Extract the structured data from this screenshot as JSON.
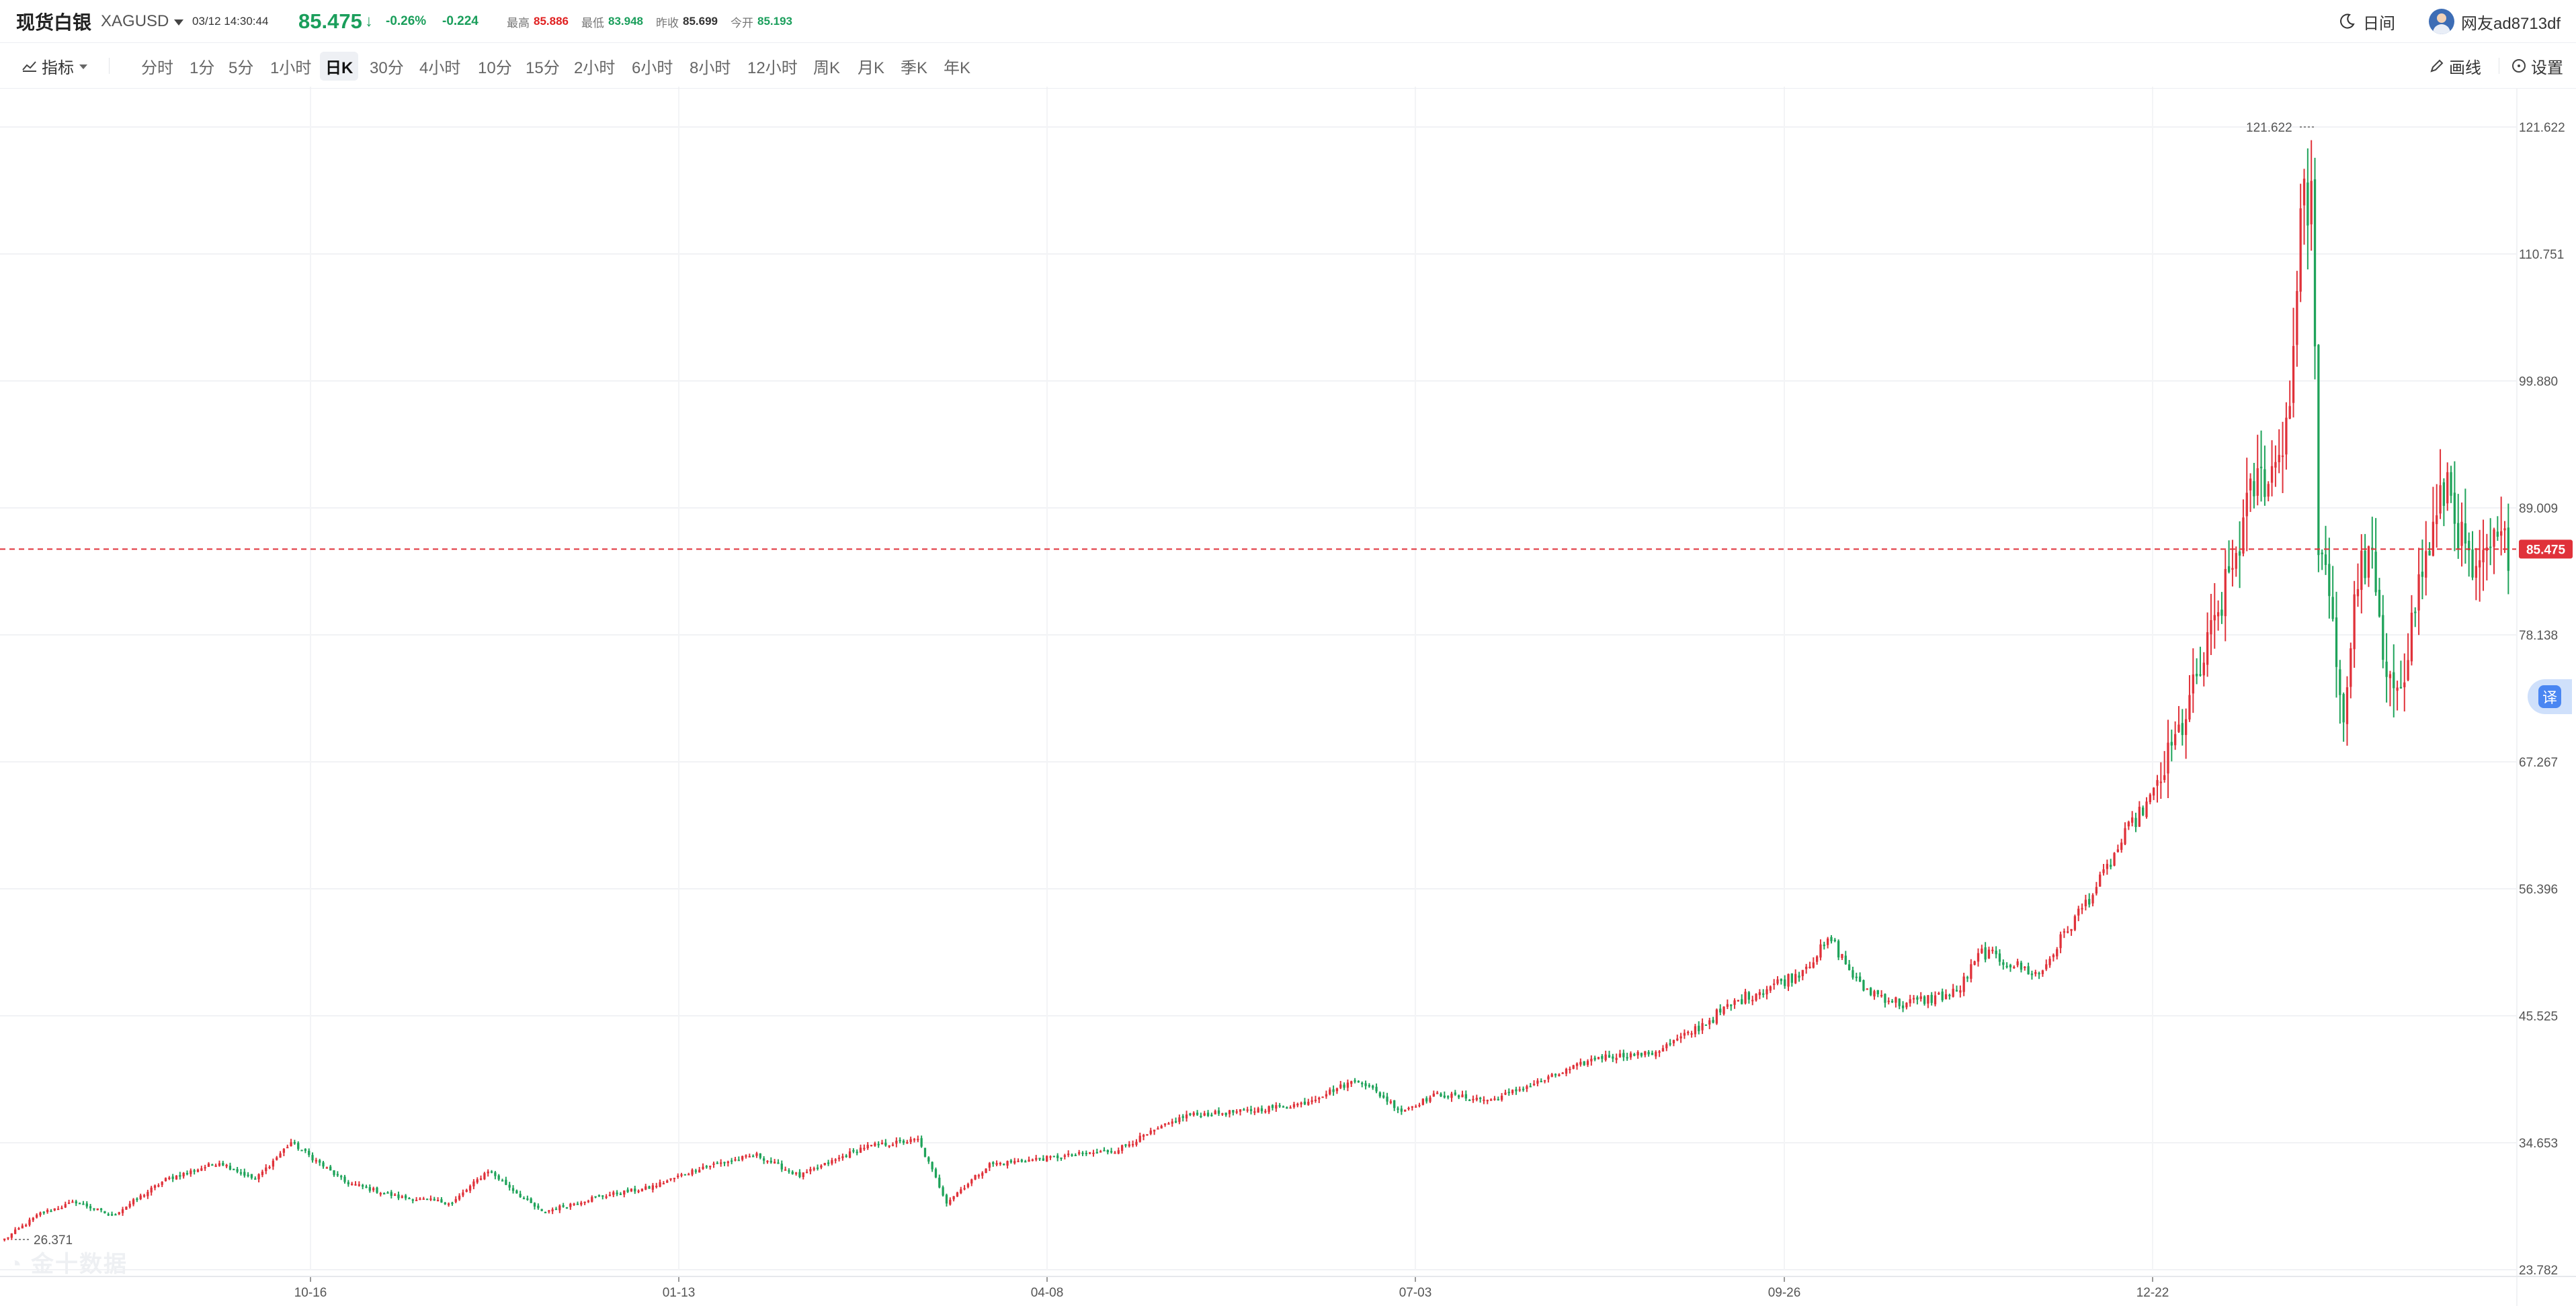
{
  "header": {
    "symbol_name": "现货白银",
    "symbol_code": "XAGUSD",
    "datetime": "03/12 14:30:44",
    "price": "85.475",
    "change_pct": "-0.26%",
    "change_abs": "-0.224",
    "stats": [
      {
        "label": "最高",
        "value": "85.886",
        "color": "#e02020"
      },
      {
        "label": "最低",
        "value": "83.948",
        "color": "#1a9e5b"
      },
      {
        "label": "昨收",
        "value": "85.699",
        "color": "#333333"
      },
      {
        "label": "今开",
        "value": "85.193",
        "color": "#1a9e5b"
      }
    ],
    "theme_toggle_label": "日间",
    "username": "网友ad8713df"
  },
  "toolbar": {
    "indicator_label": "指标",
    "periods": [
      "分时",
      "1分",
      "5分",
      "1小时",
      "日K",
      "30分",
      "4小时",
      "10分",
      "15分",
      "2小时",
      "6小时",
      "8小时",
      "12小时",
      "周K",
      "月K",
      "季K",
      "年K"
    ],
    "active_period": "日K",
    "draw_label": "画线",
    "settings_label": "设置"
  },
  "chart_data": {
    "type": "candlestick",
    "y_ticks": [
      "121.622",
      "110.751",
      "99.880",
      "89.009",
      "78.138",
      "67.267",
      "56.396",
      "45.525",
      "34.653",
      "23.782"
    ],
    "x_ticks": [
      "10-16",
      "01-13",
      "04-08",
      "07-03",
      "09-26",
      "12-22"
    ],
    "ylim": [
      23.782,
      121.622
    ],
    "current_price": "85.475",
    "high_marker": "121.622",
    "low_marker": "26.371",
    "up_color": "#e0323a",
    "down_color": "#1fa35a",
    "anchors": [
      [
        0,
        26.4
      ],
      [
        10,
        28.6
      ],
      [
        20,
        29.6
      ],
      [
        30,
        28.4
      ],
      [
        45,
        31.5
      ],
      [
        60,
        33.0
      ],
      [
        70,
        31.5
      ],
      [
        80,
        34.7
      ],
      [
        95,
        31.3
      ],
      [
        110,
        30.0
      ],
      [
        125,
        29.5
      ],
      [
        135,
        32.3
      ],
      [
        150,
        28.7
      ],
      [
        165,
        30.0
      ],
      [
        180,
        30.8
      ],
      [
        195,
        32.6
      ],
      [
        210,
        33.6
      ],
      [
        222,
        31.8
      ],
      [
        240,
        34.3
      ],
      [
        255,
        34.9
      ],
      [
        263,
        29.6
      ],
      [
        275,
        32.8
      ],
      [
        290,
        33.3
      ],
      [
        310,
        34.0
      ],
      [
        330,
        37.0
      ],
      [
        345,
        37.3
      ],
      [
        362,
        38.0
      ],
      [
        378,
        40.1
      ],
      [
        390,
        37.4
      ],
      [
        400,
        38.8
      ],
      [
        415,
        38.3
      ],
      [
        432,
        40.3
      ],
      [
        445,
        42.0
      ],
      [
        460,
        42.3
      ],
      [
        470,
        44.0
      ],
      [
        485,
        47.0
      ],
      [
        500,
        49.0
      ],
      [
        510,
        52.0
      ],
      [
        518,
        48.0
      ],
      [
        530,
        46.5
      ],
      [
        545,
        47.5
      ],
      [
        552,
        51.0
      ],
      [
        560,
        50.0
      ],
      [
        568,
        49.0
      ],
      [
        575,
        52.5
      ],
      [
        585,
        57.0
      ],
      [
        593,
        61.5
      ],
      [
        600,
        64.5
      ],
      [
        608,
        70.5
      ],
      [
        614,
        76.0
      ],
      [
        622,
        84.0
      ],
      [
        628,
        91.0
      ],
      [
        634,
        92.5
      ],
      [
        638,
        98.0
      ],
      [
        641,
        114.5
      ],
      [
        644,
        116.0
      ],
      [
        646,
        86.5
      ],
      [
        650,
        78.5
      ],
      [
        653,
        71.0
      ],
      [
        657,
        83.5
      ],
      [
        661,
        84.5
      ],
      [
        665,
        73.0
      ],
      [
        670,
        75.5
      ],
      [
        674,
        82.5
      ],
      [
        679,
        88.0
      ],
      [
        682,
        91.5
      ],
      [
        686,
        86.0
      ],
      [
        690,
        82.5
      ],
      [
        694,
        85.5
      ],
      [
        697,
        86.0
      ],
      [
        699,
        85.5
      ]
    ]
  }
}
